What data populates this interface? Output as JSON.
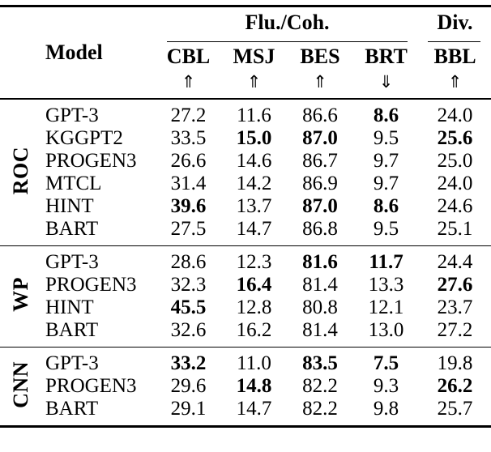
{
  "table": {
    "col_headers": {
      "model": "Model",
      "flu_coh": "Flu./Coh.",
      "div": "Div.",
      "metrics": [
        "CBL",
        "MSJ",
        "BES",
        "BRT",
        "BBL"
      ],
      "arrows": [
        "⇑",
        "⇑",
        "⇑",
        "⇓",
        "⇑"
      ],
      "arrow_meanings": [
        "higher-better",
        "higher-better",
        "higher-better",
        "lower-better",
        "higher-better"
      ]
    },
    "groups": [
      {
        "label": "ROC",
        "rows": [
          {
            "model": "GPT-3",
            "values": [
              "27.2",
              "11.6",
              "86.6",
              "8.6",
              "24.0"
            ],
            "bold": [
              false,
              false,
              false,
              true,
              false
            ]
          },
          {
            "model": "KGGPT2",
            "values": [
              "33.5",
              "15.0",
              "87.0",
              "9.5",
              "25.6"
            ],
            "bold": [
              false,
              true,
              true,
              false,
              true
            ]
          },
          {
            "model": "PROGEN3",
            "values": [
              "26.6",
              "14.6",
              "86.7",
              "9.7",
              "25.0"
            ],
            "bold": [
              false,
              false,
              false,
              false,
              false
            ]
          },
          {
            "model": "MTCL",
            "values": [
              "31.4",
              "14.2",
              "86.9",
              "9.7",
              "24.0"
            ],
            "bold": [
              false,
              false,
              false,
              false,
              false
            ]
          },
          {
            "model": "HINT",
            "values": [
              "39.6",
              "13.7",
              "87.0",
              "8.6",
              "24.6"
            ],
            "bold": [
              true,
              false,
              true,
              true,
              false
            ]
          },
          {
            "model": "BART",
            "values": [
              "27.5",
              "14.7",
              "86.8",
              "9.5",
              "25.1"
            ],
            "bold": [
              false,
              false,
              false,
              false,
              false
            ]
          }
        ]
      },
      {
        "label": "WP",
        "rows": [
          {
            "model": "GPT-3",
            "values": [
              "28.6",
              "12.3",
              "81.6",
              "11.7",
              "24.4"
            ],
            "bold": [
              false,
              false,
              true,
              true,
              false
            ]
          },
          {
            "model": "PROGEN3",
            "values": [
              "32.3",
              "16.4",
              "81.4",
              "13.3",
              "27.6"
            ],
            "bold": [
              false,
              true,
              false,
              false,
              true
            ]
          },
          {
            "model": "HINT",
            "values": [
              "45.5",
              "12.8",
              "80.8",
              "12.1",
              "23.7"
            ],
            "bold": [
              true,
              false,
              false,
              false,
              false
            ]
          },
          {
            "model": "BART",
            "values": [
              "32.6",
              "16.2",
              "81.4",
              "13.0",
              "27.2"
            ],
            "bold": [
              false,
              false,
              false,
              false,
              false
            ]
          }
        ]
      },
      {
        "label": "CNN",
        "rows": [
          {
            "model": "GPT-3",
            "values": [
              "33.2",
              "11.0",
              "83.5",
              "7.5",
              "19.8"
            ],
            "bold": [
              true,
              false,
              true,
              true,
              false
            ]
          },
          {
            "model": "PROGEN3",
            "values": [
              "29.6",
              "14.8",
              "82.2",
              "9.3",
              "26.2"
            ],
            "bold": [
              false,
              true,
              false,
              false,
              true
            ]
          },
          {
            "model": "BART",
            "values": [
              "29.1",
              "14.7",
              "82.2",
              "9.8",
              "25.7"
            ],
            "bold": [
              false,
              false,
              false,
              false,
              false
            ]
          }
        ]
      }
    ],
    "colors": {
      "text": "#000000",
      "background": "#ffffff",
      "rule": "#000000"
    }
  }
}
